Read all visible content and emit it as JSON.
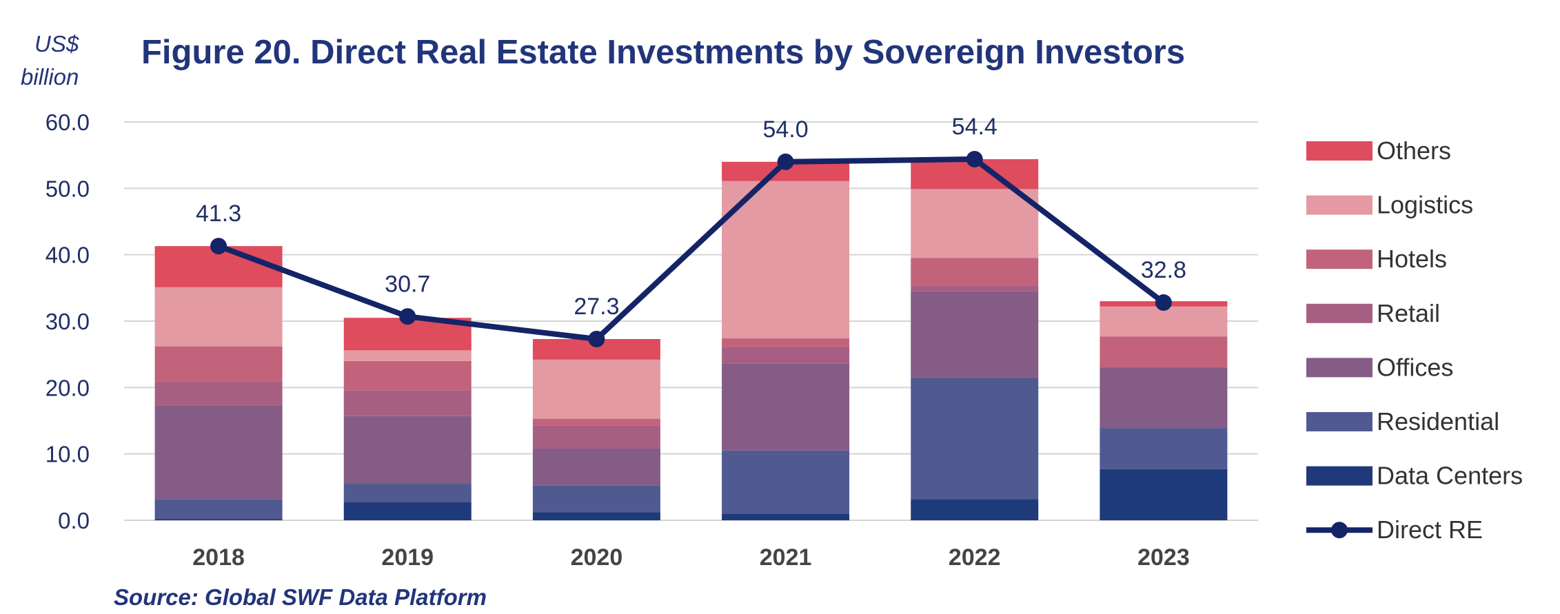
{
  "chart_data": {
    "type": "bar",
    "title": "Figure 20. Direct Real Estate Investments by Sovereign Investors",
    "unit_label": [
      "US$",
      "billion"
    ],
    "source": "Source: Global SWF Data Platform",
    "categories": [
      "2018",
      "2019",
      "2020",
      "2021",
      "2022",
      "2023"
    ],
    "ylim": [
      0,
      60
    ],
    "yticks": [
      "0.0",
      "10.0",
      "20.0",
      "30.0",
      "40.0",
      "50.0",
      "60.0"
    ],
    "grid": true,
    "legend_position": "right",
    "stacked": true,
    "series": [
      {
        "name": "Data Centers",
        "color": "#1f3a7a",
        "values": [
          0.2,
          2.7,
          1.2,
          1.0,
          3.2,
          7.7
        ]
      },
      {
        "name": "Residential",
        "color": "#505a91",
        "values": [
          3.0,
          2.8,
          4.0,
          9.5,
          18.3,
          6.2
        ]
      },
      {
        "name": "Offices",
        "color": "#845c85",
        "values": [
          14.1,
          10.2,
          5.6,
          13.1,
          13.0,
          9.1
        ]
      },
      {
        "name": "Retail",
        "color": "#a65f82",
        "values": [
          3.6,
          3.9,
          3.5,
          2.5,
          0.8,
          0.1
        ]
      },
      {
        "name": "Hotels",
        "color": "#c3637b",
        "values": [
          5.3,
          4.4,
          1.0,
          1.3,
          4.2,
          4.6
        ]
      },
      {
        "name": "Logistics",
        "color": "#e39aa3",
        "values": [
          8.9,
          1.6,
          8.9,
          23.7,
          10.4,
          4.5
        ]
      },
      {
        "name": "Others",
        "color": "#de4c5e",
        "values": [
          6.2,
          4.9,
          3.1,
          2.9,
          4.5,
          0.8
        ]
      }
    ],
    "line_series": {
      "name": "Direct RE",
      "color": "#142466",
      "values": [
        41.3,
        30.7,
        27.3,
        54.0,
        54.4,
        32.8
      ],
      "labels": [
        "41.3",
        "30.7",
        "27.3",
        "54.0",
        "54.4",
        "32.8"
      ]
    }
  }
}
